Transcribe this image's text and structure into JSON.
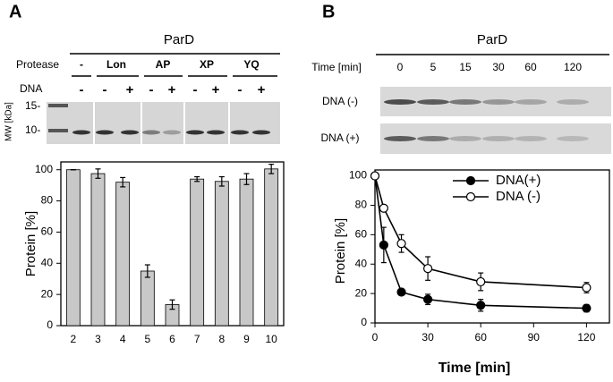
{
  "panel_labels": [
    "A",
    "B"
  ],
  "gels": [
    {
      "title": "ParD",
      "row_labels": [
        "Protease",
        "DNA"
      ],
      "protease": [
        "-",
        "Lon",
        "AP",
        "XP",
        "YQ"
      ],
      "dna": [
        "-",
        "-",
        "+",
        "-",
        "+",
        "-",
        "+",
        "-",
        "+"
      ],
      "mw_label": "MW [kDa]",
      "mw_markers": [
        "15-",
        "10-"
      ]
    },
    {
      "title": "ParD",
      "row_label": "Time [min]",
      "times": [
        "0",
        "5",
        "15",
        "30",
        "60",
        "120"
      ],
      "lanes": [
        "DNA (-)",
        "DNA (+)"
      ]
    }
  ],
  "chart_data": [
    {
      "type": "bar",
      "ylabel": "Protein [%]",
      "categories": [
        "2",
        "3",
        "4",
        "5",
        "6",
        "7",
        "8",
        "9",
        "10"
      ],
      "values": [
        100,
        97.5,
        92,
        35,
        13.5,
        94,
        92.5,
        94,
        100.5
      ],
      "errors": [
        0,
        3,
        3,
        4,
        3,
        1.5,
        3,
        3.5,
        3
      ],
      "color": "#c8c8c8",
      "ylim": [
        0,
        105
      ],
      "yticks": [
        0,
        20,
        40,
        60,
        80,
        100
      ]
    },
    {
      "type": "line",
      "xlabel": "Time [min]",
      "ylabel": "Protein [%]",
      "x": [
        0,
        5,
        15,
        30,
        60,
        120
      ],
      "series": [
        {
          "name": "DNA(+)",
          "color": "#000000",
          "marker_fill": "#000000",
          "values": [
            100,
            53,
            21,
            16,
            12,
            10
          ],
          "errors": [
            0,
            12,
            1.5,
            3.5,
            4,
            2.5
          ]
        },
        {
          "name": "DNA (-)",
          "color": "#000000",
          "marker_fill": "#ffffff",
          "values": [
            100,
            78,
            54,
            37,
            28,
            24
          ],
          "errors": [
            0,
            2,
            6,
            8,
            6,
            3.5
          ]
        }
      ],
      "xlim": [
        0,
        133
      ],
      "ylim": [
        0,
        104
      ],
      "xticks": [
        0,
        30,
        60,
        90,
        120
      ],
      "yticks": [
        0,
        20,
        40,
        60,
        80,
        100
      ],
      "legend": "upper right"
    }
  ]
}
